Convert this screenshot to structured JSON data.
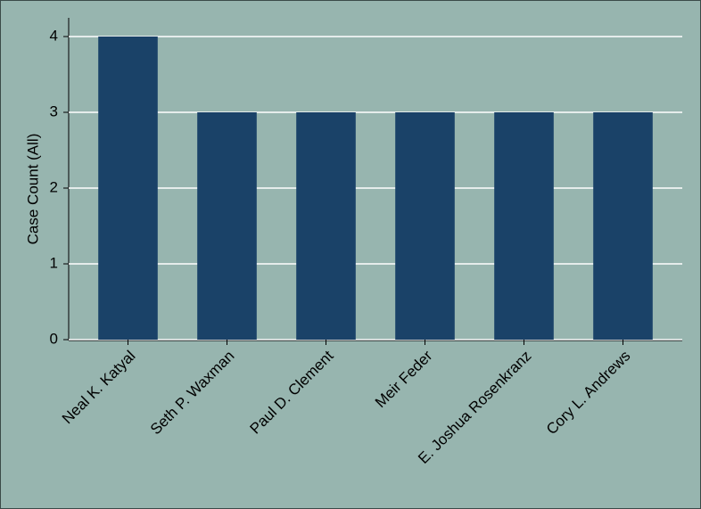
{
  "chart_data": {
    "type": "bar",
    "y_label": "Case Count (All)",
    "categories": [
      "Neal K. Katyal",
      "Seth P. Waxman",
      "Paul D. Clement",
      "Meir Feder",
      "E. Joshua Rosenkranz",
      "Cory L. Andrews"
    ],
    "values": [
      4,
      3,
      3,
      3,
      3,
      3
    ],
    "color": "#1a4268",
    "ylim": [
      0,
      4
    ],
    "yticks": [
      0,
      1,
      2,
      3,
      4
    ],
    "grid": true
  }
}
